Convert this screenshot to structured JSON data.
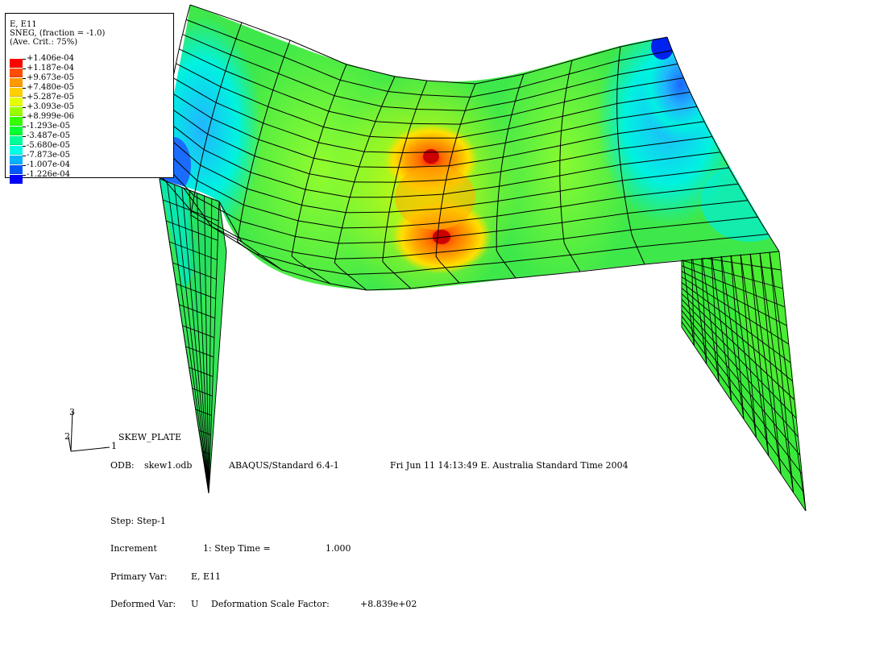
{
  "legend": {
    "variable": "E, E11",
    "section_point": "SNEG, (fraction = -1.0)",
    "averaging": "(Ave. Crit.: 75%)",
    "levels": [
      {
        "value": "+1.406e-04",
        "color": "#ff0000"
      },
      {
        "value": "+1.187e-04",
        "color": "#ff4d00"
      },
      {
        "value": "+9.673e-05",
        "color": "#ff9900"
      },
      {
        "value": "+7.480e-05",
        "color": "#ffd000"
      },
      {
        "value": "+5.287e-05",
        "color": "#e6ff00"
      },
      {
        "value": "+3.093e-05",
        "color": "#99ff00"
      },
      {
        "value": "+8.999e-06",
        "color": "#33ff00"
      },
      {
        "value": "-1.293e-05",
        "color": "#00ff33"
      },
      {
        "value": "-3.487e-05",
        "color": "#00ff99"
      },
      {
        "value": "-5.680e-05",
        "color": "#00ffe6"
      },
      {
        "value": "-7.873e-05",
        "color": "#00b3ff"
      },
      {
        "value": "-1.007e-04",
        "color": "#0059ff"
      },
      {
        "value": "-1.226e-04",
        "color": "#0000ff"
      }
    ]
  },
  "triad": {
    "axis_x": "1",
    "axis_y": "2",
    "axis_z": "3"
  },
  "info": {
    "model_name": "SKEW_PLATE",
    "odb_label": "ODB:",
    "odb_file": "skew1.odb",
    "solver": "ABAQUS/Standard 6.4-1",
    "date": "Fri Jun 11 14:13:49 E. Australia Standard Time 2004",
    "step": "Step: Step-1",
    "increment_label": "Increment",
    "increment_value": "1: Step Time =",
    "step_time": "1.000",
    "primary_var_label": "Primary Var:",
    "primary_var": "E, E11",
    "deformed_var_label": "Deformed Var:",
    "deformed_var": "U",
    "scale_factor_label": "Deformation Scale Factor:",
    "scale_factor": "+8.839e+02"
  },
  "colors": {
    "mesh_line": "#000000",
    "background": "#ffffff"
  }
}
